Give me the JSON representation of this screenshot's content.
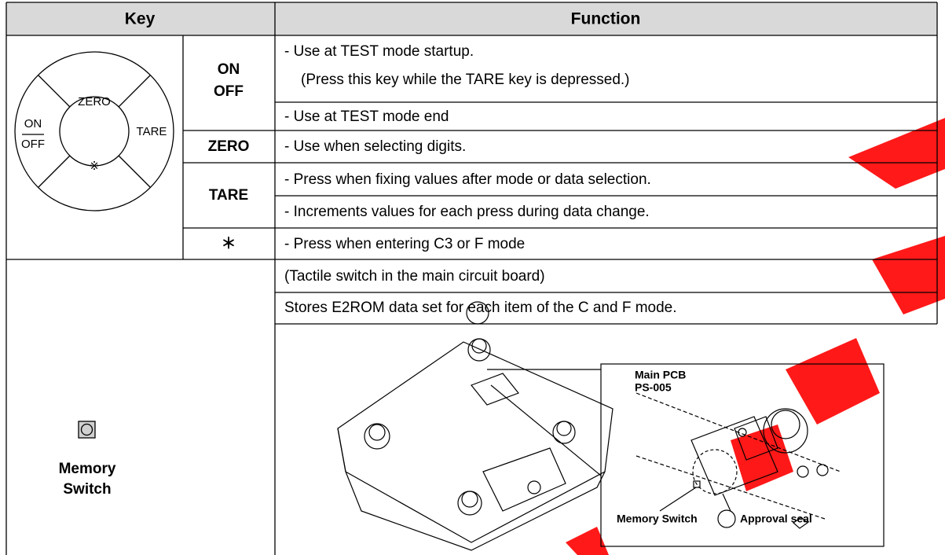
{
  "header": {
    "key": "Key",
    "function": "Function"
  },
  "keypad": {
    "zero": "ZERO",
    "on": "ON",
    "off": "OFF",
    "tare": "TARE",
    "star": "※"
  },
  "rows": [
    {
      "key": [
        "ON",
        "OFF"
      ],
      "function": [
        "- Use at TEST mode startup.",
        "(Press this key while the TARE key is depressed.)",
        "- Use at TEST mode end"
      ]
    },
    {
      "key": [
        "ZERO"
      ],
      "function": [
        "- Use when selecting digits."
      ]
    },
    {
      "key": [
        "TARE"
      ],
      "function": [
        "- Press when fixing values after mode or data selection.",
        "- Increments values for each press during data change."
      ]
    },
    {
      "key": [
        "＊"
      ],
      "function": [
        "- Press when entering C3 or F mode"
      ]
    }
  ],
  "memory_switch": {
    "key": [
      "Memory",
      "Switch"
    ],
    "function": [
      "(Tactile switch in the main circuit board)",
      "Stores E2ROM data set for each item of the C and F mode."
    ],
    "illustration": {
      "pcb": [
        "Main PCB",
        "PS-005"
      ],
      "switch_label": "Memory Switch",
      "seal_label": "Approval seal"
    }
  }
}
